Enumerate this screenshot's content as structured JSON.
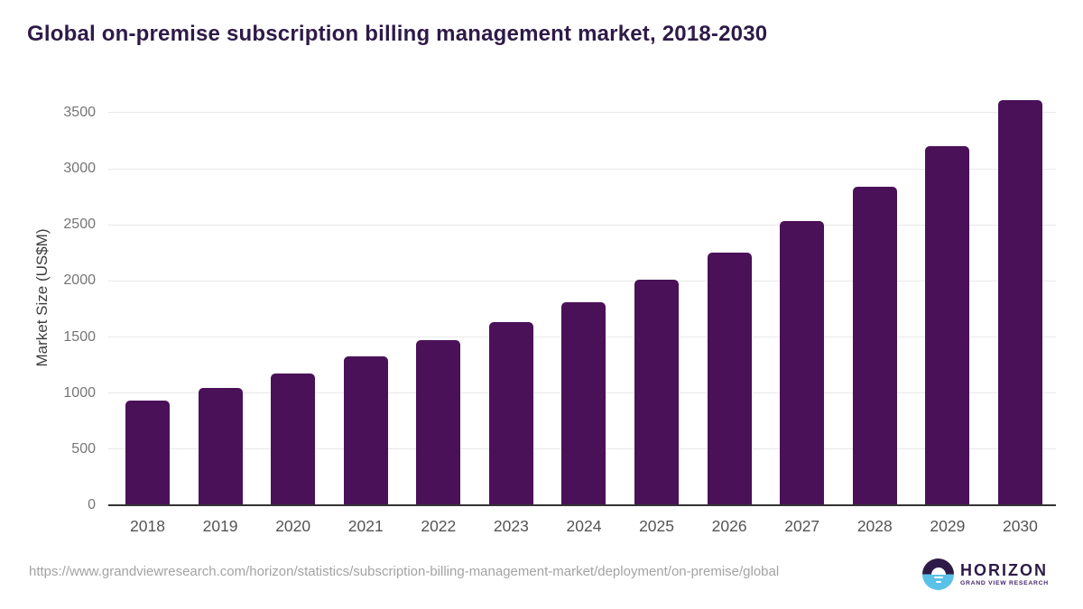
{
  "title": "Global on-premise subscription billing management market, 2018-2030",
  "chart_data": {
    "type": "bar",
    "title": "Global on-premise subscription billing management market, 2018-2030",
    "categories": [
      "2018",
      "2019",
      "2020",
      "2021",
      "2022",
      "2023",
      "2024",
      "2025",
      "2026",
      "2027",
      "2028",
      "2029",
      "2030"
    ],
    "values": [
      930,
      1045,
      1175,
      1330,
      1470,
      1630,
      1810,
      2015,
      2250,
      2530,
      2840,
      3200,
      3610
    ],
    "xlabel": "",
    "ylabel": "Market Size (US$M)",
    "ylim": [
      0,
      3700
    ],
    "yticks": [
      0,
      500,
      1000,
      1500,
      2000,
      2500,
      3000,
      3500
    ],
    "grid": "horizontal",
    "legend_position": "none",
    "bar_color": "#4a1158"
  },
  "footer": {
    "source_url": "https://www.grandviewresearch.com/horizon/statistics/subscription-billing-management-market/deployment/on-premise/global"
  },
  "logo": {
    "brand": "HORIZON",
    "sub_brand": "GRAND VIEW RESEARCH",
    "icon": "horizon-sunset-circle-icon"
  },
  "colors": {
    "bar": "#4a1158",
    "title_text": "#2e1a47",
    "axis_line": "#333333",
    "gridline": "#e8e8e8",
    "y_tick_text": "#757575",
    "x_tick_text": "#545454",
    "axis_title_text": "#3d3d3d",
    "url_text": "#a3a3a3",
    "logo_purple": "#2e1a47",
    "logo_blue": "#5ac1e8",
    "background": "#ffffff"
  }
}
